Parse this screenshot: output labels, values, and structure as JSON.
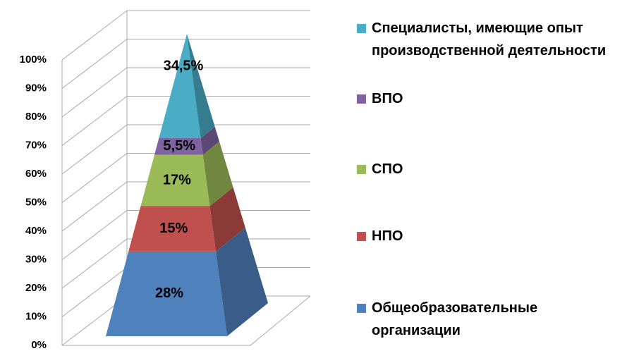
{
  "chart_data": {
    "type": "pyramid",
    "ylim": [
      0,
      100
    ],
    "yticks": [
      {
        "value": 0,
        "label": "0%"
      },
      {
        "value": 10,
        "label": "10%"
      },
      {
        "value": 20,
        "label": "20%"
      },
      {
        "value": 30,
        "label": "30%"
      },
      {
        "value": 40,
        "label": "40%"
      },
      {
        "value": 50,
        "label": "50%"
      },
      {
        "value": 60,
        "label": "60%"
      },
      {
        "value": 70,
        "label": "70%"
      },
      {
        "value": 80,
        "label": "80%"
      },
      {
        "value": 90,
        "label": "90%"
      },
      {
        "value": 100,
        "label": "100%"
      }
    ],
    "grid": true,
    "legend": "right",
    "series": [
      {
        "name": "Общеобразовательные организации",
        "color": "#4f81bd",
        "values": [
          28
        ],
        "value_labels": [
          "28%"
        ]
      },
      {
        "name": "НПО",
        "color": "#c0504d",
        "values": [
          15
        ],
        "value_labels": [
          "15%"
        ]
      },
      {
        "name": "СПО",
        "color": "#9bbb59",
        "values": [
          17
        ],
        "value_labels": [
          "17%"
        ]
      },
      {
        "name": "ВПО",
        "color": "#8064a2",
        "values": [
          5.5
        ],
        "value_labels": [
          "5,5%"
        ]
      },
      {
        "name": "Специалисты, имеющие опыт производственной деятельности",
        "color": "#4bacc6",
        "values": [
          34.5
        ],
        "value_labels": [
          "34,5%"
        ]
      }
    ]
  }
}
